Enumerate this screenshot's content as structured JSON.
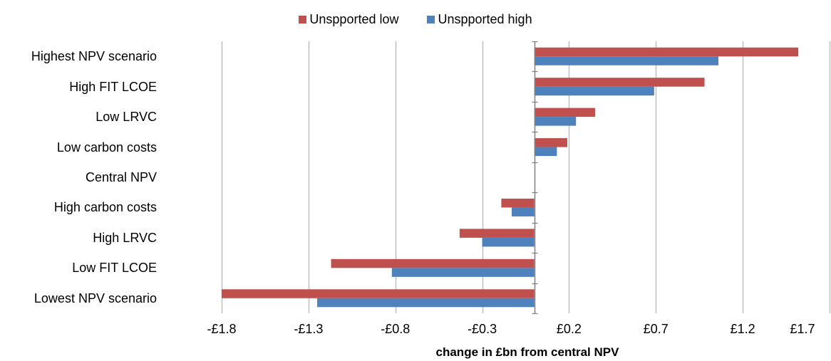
{
  "chart_data": {
    "type": "bar",
    "orientation": "horizontal",
    "categories": [
      "Highest NPV scenario",
      "High FIT LCOE",
      "Low LRVC",
      "Low carbon costs",
      "Central NPV",
      "High carbon costs",
      "High LRVC",
      "Low FIT LCOE",
      "Lowest NPV scenario"
    ],
    "series": [
      {
        "name": "Unspported low",
        "color": "#C0504D",
        "values": [
          1.52,
          0.98,
          0.35,
          0.19,
          0,
          -0.19,
          -0.43,
          -1.17,
          -1.8
        ]
      },
      {
        "name": "Unspported high",
        "color": "#4F81BD",
        "values": [
          1.06,
          0.69,
          0.24,
          0.13,
          0,
          -0.13,
          -0.3,
          -0.82,
          -1.25
        ]
      }
    ],
    "xlim": [
      -1.8,
      1.7
    ],
    "xticks": [
      "-£1.8",
      "-£1.3",
      "-£0.8",
      "-£0.3",
      "£0.2",
      "£0.7",
      "£1.2",
      "£1.7"
    ],
    "xtick_values": [
      -1.8,
      -1.3,
      -0.8,
      -0.3,
      0.2,
      0.7,
      1.2,
      1.7
    ],
    "xlabel": "change in £bn from central NPV",
    "ylabel": "",
    "grid": "vertical",
    "legend": "top"
  }
}
